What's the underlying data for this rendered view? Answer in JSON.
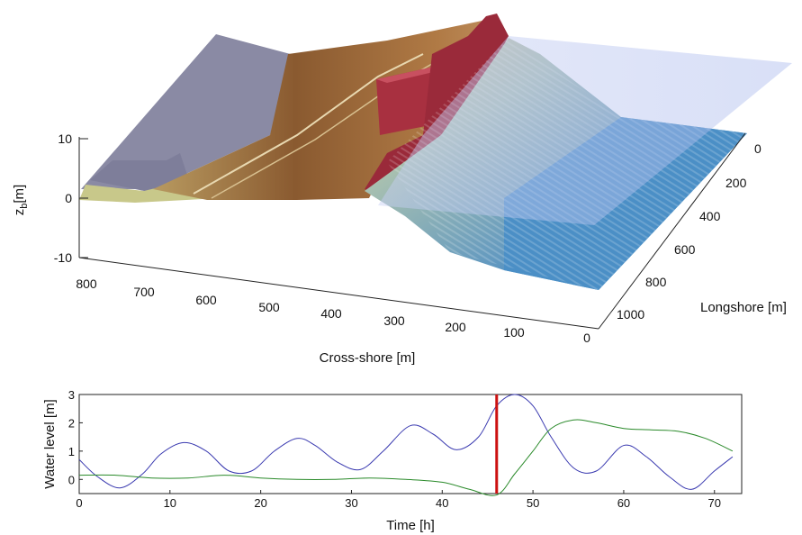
{
  "chart_data": [
    {
      "type": "surface3d",
      "zlabel": "z",
      "zlabel_sub": "b",
      "zlabel_unit": "[m]",
      "xlabel": "Cross-shore [m]",
      "ylabel": "Longshore [m]",
      "x_ticks": [
        "800",
        "700",
        "600",
        "500",
        "400",
        "300",
        "200",
        "100",
        "0"
      ],
      "y_ticks": [
        "0",
        "200",
        "400",
        "600",
        "800",
        "1000"
      ],
      "z_ticks": [
        "10",
        "0",
        "-10"
      ],
      "xlim": [
        0,
        850
      ],
      "ylim": [
        0,
        1000
      ],
      "zlim": [
        -10,
        10
      ],
      "colors": {
        "water": "#4a8fc8",
        "water_light": "#b8c8f0",
        "dune": "#a05a35",
        "building": "#7a7a96",
        "seawall": "#a02030"
      }
    },
    {
      "type": "line",
      "xlabel": "Time [h]",
      "ylabel": "Water level [m]",
      "xlim": [
        0,
        73
      ],
      "ylim": [
        -0.5,
        3
      ],
      "x_ticks": [
        "0",
        "10",
        "20",
        "30",
        "40",
        "50",
        "60",
        "70"
      ],
      "y_ticks": [
        "3",
        "2",
        "1",
        "0"
      ],
      "marker_time": 46,
      "series": [
        {
          "color": "#3a3ab0",
          "x": [
            0,
            2,
            4.5,
            7,
            9,
            11.5,
            14,
            16.5,
            19,
            21.5,
            24,
            26,
            28.5,
            31,
            33.5,
            36.5,
            39,
            41.5,
            44,
            46,
            48,
            50,
            52,
            54.5,
            57,
            60,
            62.5,
            65,
            67.5,
            70,
            72
          ],
          "y": [
            0.7,
            0.1,
            -0.3,
            0.2,
            0.9,
            1.3,
            1.0,
            0.3,
            0.3,
            1.0,
            1.45,
            1.2,
            0.6,
            0.35,
            1.0,
            1.9,
            1.6,
            1.05,
            1.5,
            2.6,
            3.0,
            2.6,
            1.5,
            0.4,
            0.3,
            1.2,
            0.8,
            0.1,
            -0.35,
            0.3,
            0.8
          ]
        },
        {
          "color": "#2a8a2a",
          "x": [
            0,
            4,
            8,
            12,
            16,
            20,
            24,
            28,
            32,
            36,
            40,
            43,
            46,
            48,
            50,
            52,
            54.5,
            57,
            60,
            63,
            66,
            69,
            72
          ],
          "y": [
            0.15,
            0.15,
            0.05,
            0.05,
            0.15,
            0.05,
            0.0,
            0.0,
            0.05,
            0.0,
            -0.1,
            -0.35,
            -0.55,
            0.2,
            1.0,
            1.8,
            2.1,
            2.0,
            1.8,
            1.75,
            1.7,
            1.45,
            1.0
          ]
        }
      ]
    }
  ]
}
